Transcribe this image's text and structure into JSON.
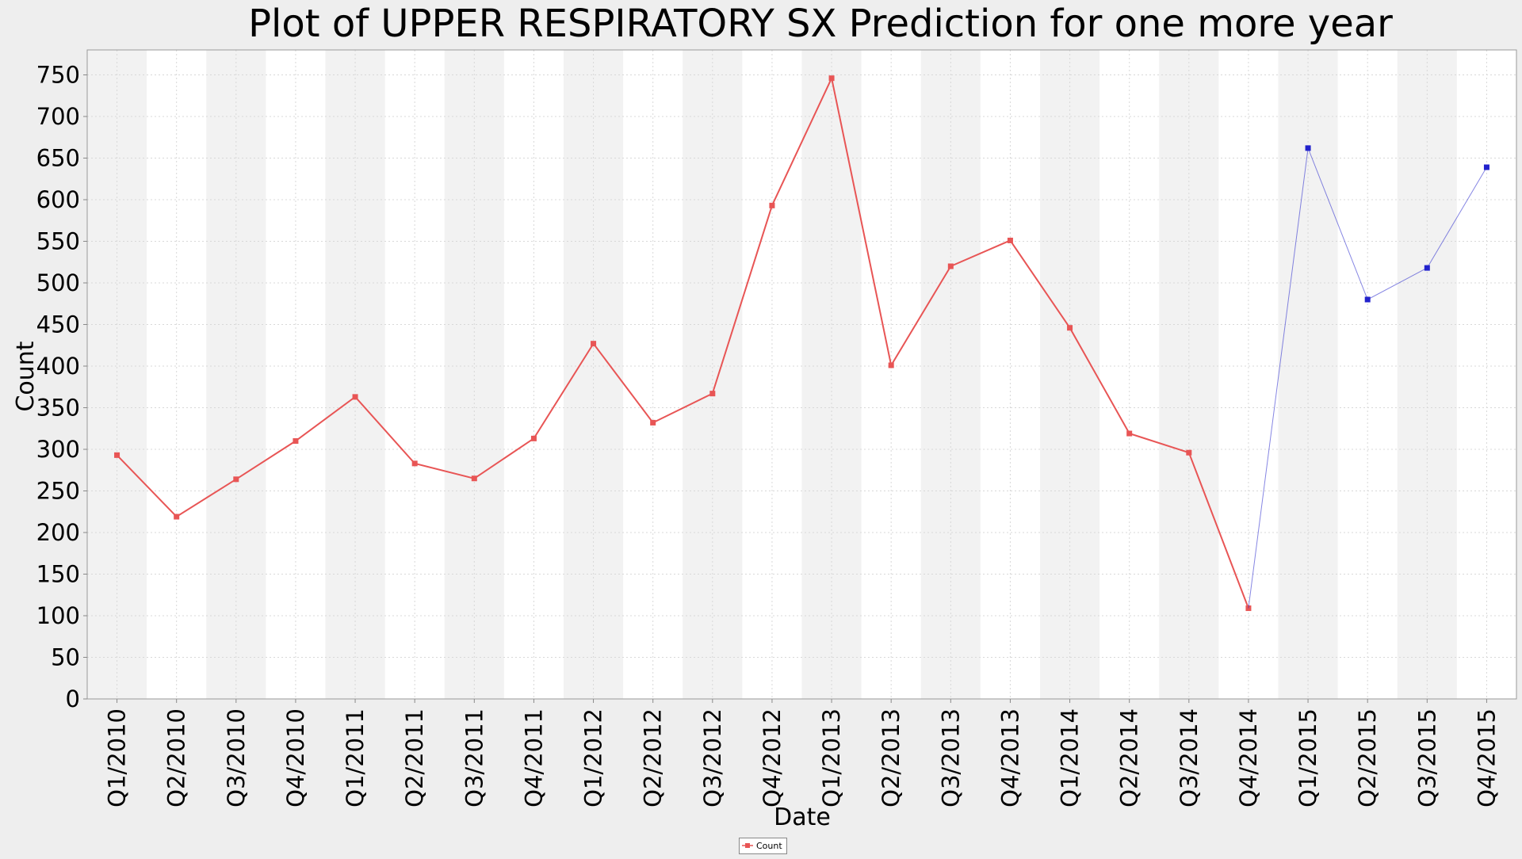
{
  "chart_data": {
    "type": "line",
    "title": "Plot of UPPER RESPIRATORY SX Prediction for one more year",
    "xlabel": "Date",
    "ylabel": "Count",
    "ylim": [
      0,
      780
    ],
    "y_ticks": [
      0,
      50,
      100,
      150,
      200,
      250,
      300,
      350,
      400,
      450,
      500,
      550,
      600,
      650,
      700,
      750
    ],
    "grid": true,
    "legend_position": "bottom-center",
    "categories": [
      "Q1/2010",
      "Q2/2010",
      "Q3/2010",
      "Q4/2010",
      "Q1/2011",
      "Q2/2011",
      "Q3/2011",
      "Q4/2011",
      "Q1/2012",
      "Q2/2012",
      "Q3/2012",
      "Q4/2012",
      "Q1/2013",
      "Q2/2013",
      "Q3/2013",
      "Q4/2013",
      "Q1/2014",
      "Q2/2014",
      "Q3/2014",
      "Q4/2014",
      "Q1/2015",
      "Q2/2015",
      "Q3/2015",
      "Q4/2015"
    ],
    "series": [
      {
        "name": "Count",
        "color": "#e85555",
        "values": [
          293,
          219,
          264,
          310,
          363,
          283,
          265,
          313,
          427,
          332,
          367,
          593,
          746,
          401,
          520,
          551,
          446,
          319,
          296,
          109,
          null,
          null,
          null,
          null
        ]
      },
      {
        "color": "#2222cc",
        "values": [
          null,
          null,
          null,
          null,
          null,
          null,
          null,
          null,
          null,
          null,
          null,
          null,
          null,
          null,
          null,
          null,
          null,
          null,
          null,
          109,
          662,
          480,
          518,
          639
        ]
      }
    ],
    "colors": {
      "band_dark": "#f2f2f2",
      "band_light": "#ffffff",
      "grid": "#d8d8d8",
      "page_background": "#eeeeee"
    }
  }
}
